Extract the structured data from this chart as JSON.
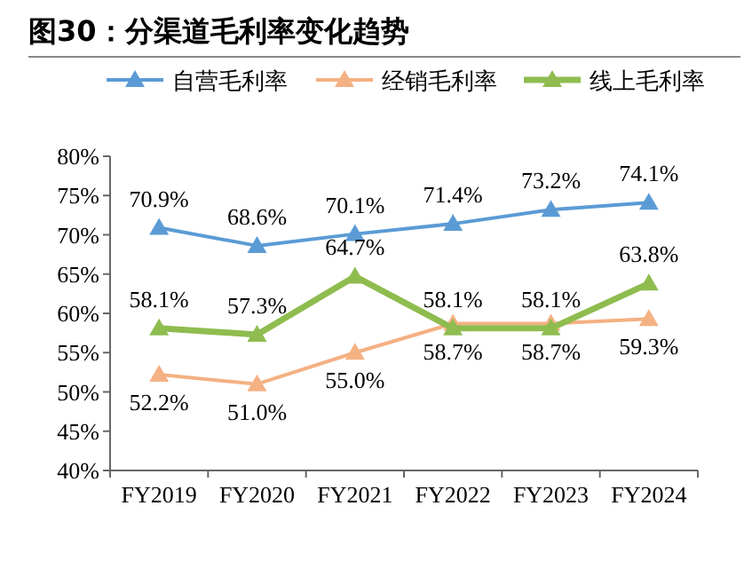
{
  "chart_data": {
    "type": "line",
    "title": "图30：分渠道毛利率变化趋势",
    "categories": [
      "FY2019",
      "FY2020",
      "FY2021",
      "FY2022",
      "FY2023",
      "FY2024"
    ],
    "series": [
      {
        "name": "自营毛利率",
        "color": "#5b9bd5",
        "values": [
          70.9,
          68.6,
          70.1,
          71.4,
          73.2,
          74.1
        ],
        "value_labels": [
          "70.9%",
          "68.6%",
          "70.1%",
          "71.4%",
          "73.2%",
          "74.1%"
        ]
      },
      {
        "name": "经销毛利率",
        "color": "#f4b183",
        "values": [
          52.2,
          51.0,
          55.0,
          58.7,
          58.7,
          59.3
        ],
        "value_labels": [
          "52.2%",
          "51.0%",
          "55.0%",
          "58.7%",
          "58.7%",
          "59.3%"
        ]
      },
      {
        "name": "线上毛利率",
        "color": "#8fbc4f",
        "values": [
          58.1,
          57.3,
          64.7,
          58.1,
          58.1,
          63.8
        ],
        "value_labels": [
          "58.1%",
          "57.3%",
          "64.7%",
          "58.1%",
          "58.1%",
          "63.8%"
        ]
      }
    ],
    "ylim": [
      40,
      80
    ],
    "yticks": [
      {
        "value": 40,
        "label": "40%"
      },
      {
        "value": 45,
        "label": "45%"
      },
      {
        "value": 50,
        "label": "50%"
      },
      {
        "value": 55,
        "label": "55%"
      },
      {
        "value": 60,
        "label": "60%"
      },
      {
        "value": 65,
        "label": "65%"
      },
      {
        "value": 70,
        "label": "70%"
      },
      {
        "value": 75,
        "label": "75%"
      },
      {
        "value": 80,
        "label": "80%"
      }
    ],
    "legend": "top",
    "marker": "triangle",
    "line_style": "solid",
    "grid": false
  }
}
